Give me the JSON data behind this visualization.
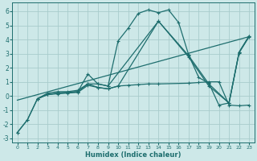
{
  "xlabel": "Humidex (Indice chaleur)",
  "xlim": [
    -0.5,
    23.5
  ],
  "ylim": [
    -3.3,
    6.6
  ],
  "yticks": [
    -3,
    -2,
    -1,
    0,
    1,
    2,
    3,
    4,
    5,
    6
  ],
  "xticks": [
    0,
    1,
    2,
    3,
    4,
    5,
    6,
    7,
    8,
    9,
    10,
    11,
    12,
    13,
    14,
    15,
    16,
    17,
    18,
    19,
    20,
    21,
    22,
    23
  ],
  "bg_color": "#cde8e8",
  "grid_color": "#a8cccc",
  "line_color": "#1e6e6e",
  "line1_x": [
    0,
    1,
    2,
    3,
    4,
    5,
    6,
    7,
    8,
    9,
    10,
    11,
    12,
    13,
    14,
    15,
    16,
    17,
    18,
    19,
    20,
    21,
    22,
    23
  ],
  "line1_y": [
    -2.6,
    -1.7,
    -0.2,
    0.2,
    0.3,
    0.3,
    0.4,
    0.85,
    0.85,
    0.7,
    3.9,
    4.8,
    5.85,
    6.1,
    5.9,
    6.1,
    5.2,
    2.9,
    1.3,
    0.9,
    -0.65,
    -0.5,
    3.1,
    4.25
  ],
  "line2_x": [
    2,
    3,
    4,
    5,
    6,
    7,
    8,
    9,
    14,
    17,
    19,
    21,
    22,
    23
  ],
  "line2_y": [
    -0.2,
    0.1,
    0.2,
    0.25,
    0.3,
    1.55,
    0.85,
    0.7,
    5.3,
    2.85,
    0.85,
    -0.5,
    3.1,
    4.25
  ],
  "line3_x": [
    2,
    3,
    4,
    5,
    6,
    7,
    8,
    9,
    10,
    14,
    17,
    19,
    21,
    22,
    23
  ],
  "line3_y": [
    -0.2,
    0.1,
    0.2,
    0.25,
    0.3,
    0.85,
    0.6,
    0.5,
    0.7,
    5.3,
    2.75,
    0.7,
    -0.5,
    3.05,
    4.2
  ],
  "line4_x": [
    0,
    23
  ],
  "line4_y": [
    -0.3,
    4.2
  ],
  "line5_x": [
    0,
    1,
    2,
    3,
    4,
    5,
    6,
    7,
    8,
    9,
    10,
    11,
    12,
    13,
    14,
    17,
    18,
    19,
    20,
    21,
    22,
    23
  ],
  "line5_y": [
    -2.6,
    -1.7,
    -0.2,
    0.1,
    0.15,
    0.2,
    0.25,
    0.75,
    0.6,
    0.5,
    0.7,
    0.75,
    0.8,
    0.85,
    0.85,
    0.9,
    0.95,
    1.0,
    1.0,
    -0.65,
    -0.7,
    -0.65
  ]
}
